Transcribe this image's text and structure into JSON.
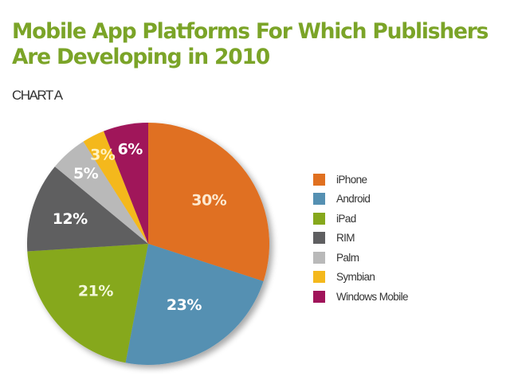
{
  "header": {
    "title_line1": "Mobile App Platforms For Which Publishers",
    "title_line2": "Are Developing in 2010",
    "subtitle": "CHART A"
  },
  "chart_data": {
    "type": "pie",
    "title": "Mobile App Platforms For Which Publishers Are Developing in 2010",
    "subtitle": "CHART A",
    "categories": [
      "iPhone",
      "Android",
      "iPad",
      "RIM",
      "Palm",
      "Symbian",
      "Windows Mobile"
    ],
    "values": [
      30,
      23,
      21,
      12,
      5,
      3,
      6
    ],
    "labels": [
      "30%",
      "23%",
      "21%",
      "12%",
      "5%",
      "3%",
      "6%"
    ],
    "colors": [
      "#e07020",
      "#5590b2",
      "#86a81c",
      "#5f5f61",
      "#b9b9b9",
      "#f4b81c",
      "#a0145a"
    ],
    "start_angle": "12 o'clock",
    "direction": "clockwise",
    "legend_position": "right"
  },
  "legend": {
    "items": [
      {
        "label": "iPhone",
        "color": "#e07020"
      },
      {
        "label": "Android",
        "color": "#5590b2"
      },
      {
        "label": "iPad",
        "color": "#86a81c"
      },
      {
        "label": "RIM",
        "color": "#5f5f61"
      },
      {
        "label": "Palm",
        "color": "#b9b9b9"
      },
      {
        "label": "Symbian",
        "color": "#f4b81c"
      },
      {
        "label": "Windows Mobile",
        "color": "#a0145a"
      }
    ]
  }
}
